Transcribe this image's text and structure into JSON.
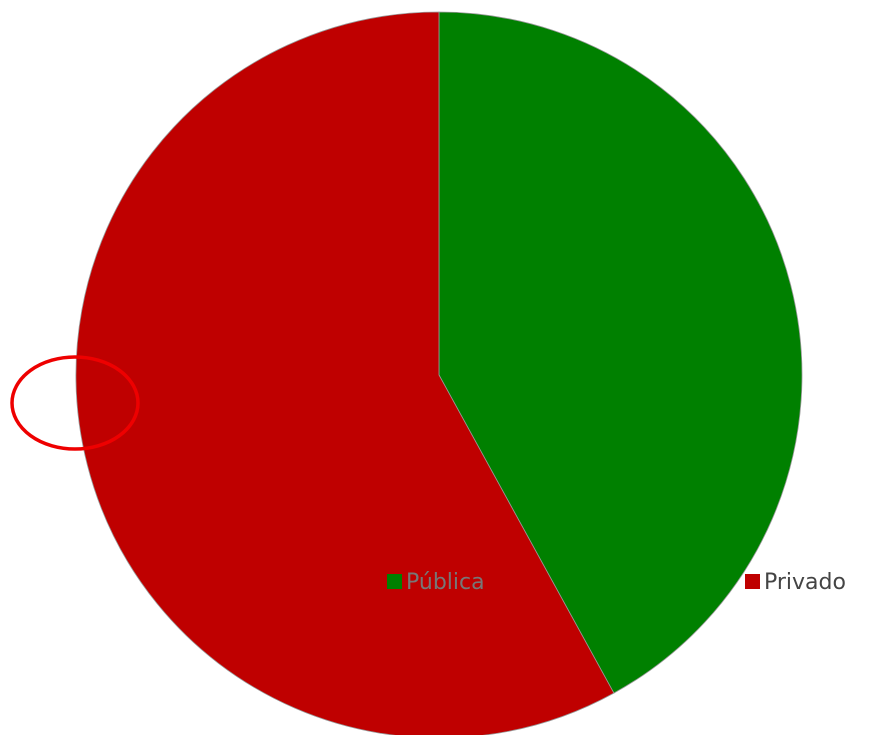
{
  "chart_data": {
    "type": "pie",
    "categories": [
      "Pública",
      "Privado"
    ],
    "values": [
      42,
      58
    ],
    "colors": [
      "#008000",
      "#bf0000"
    ],
    "legend": "bottom"
  }
}
